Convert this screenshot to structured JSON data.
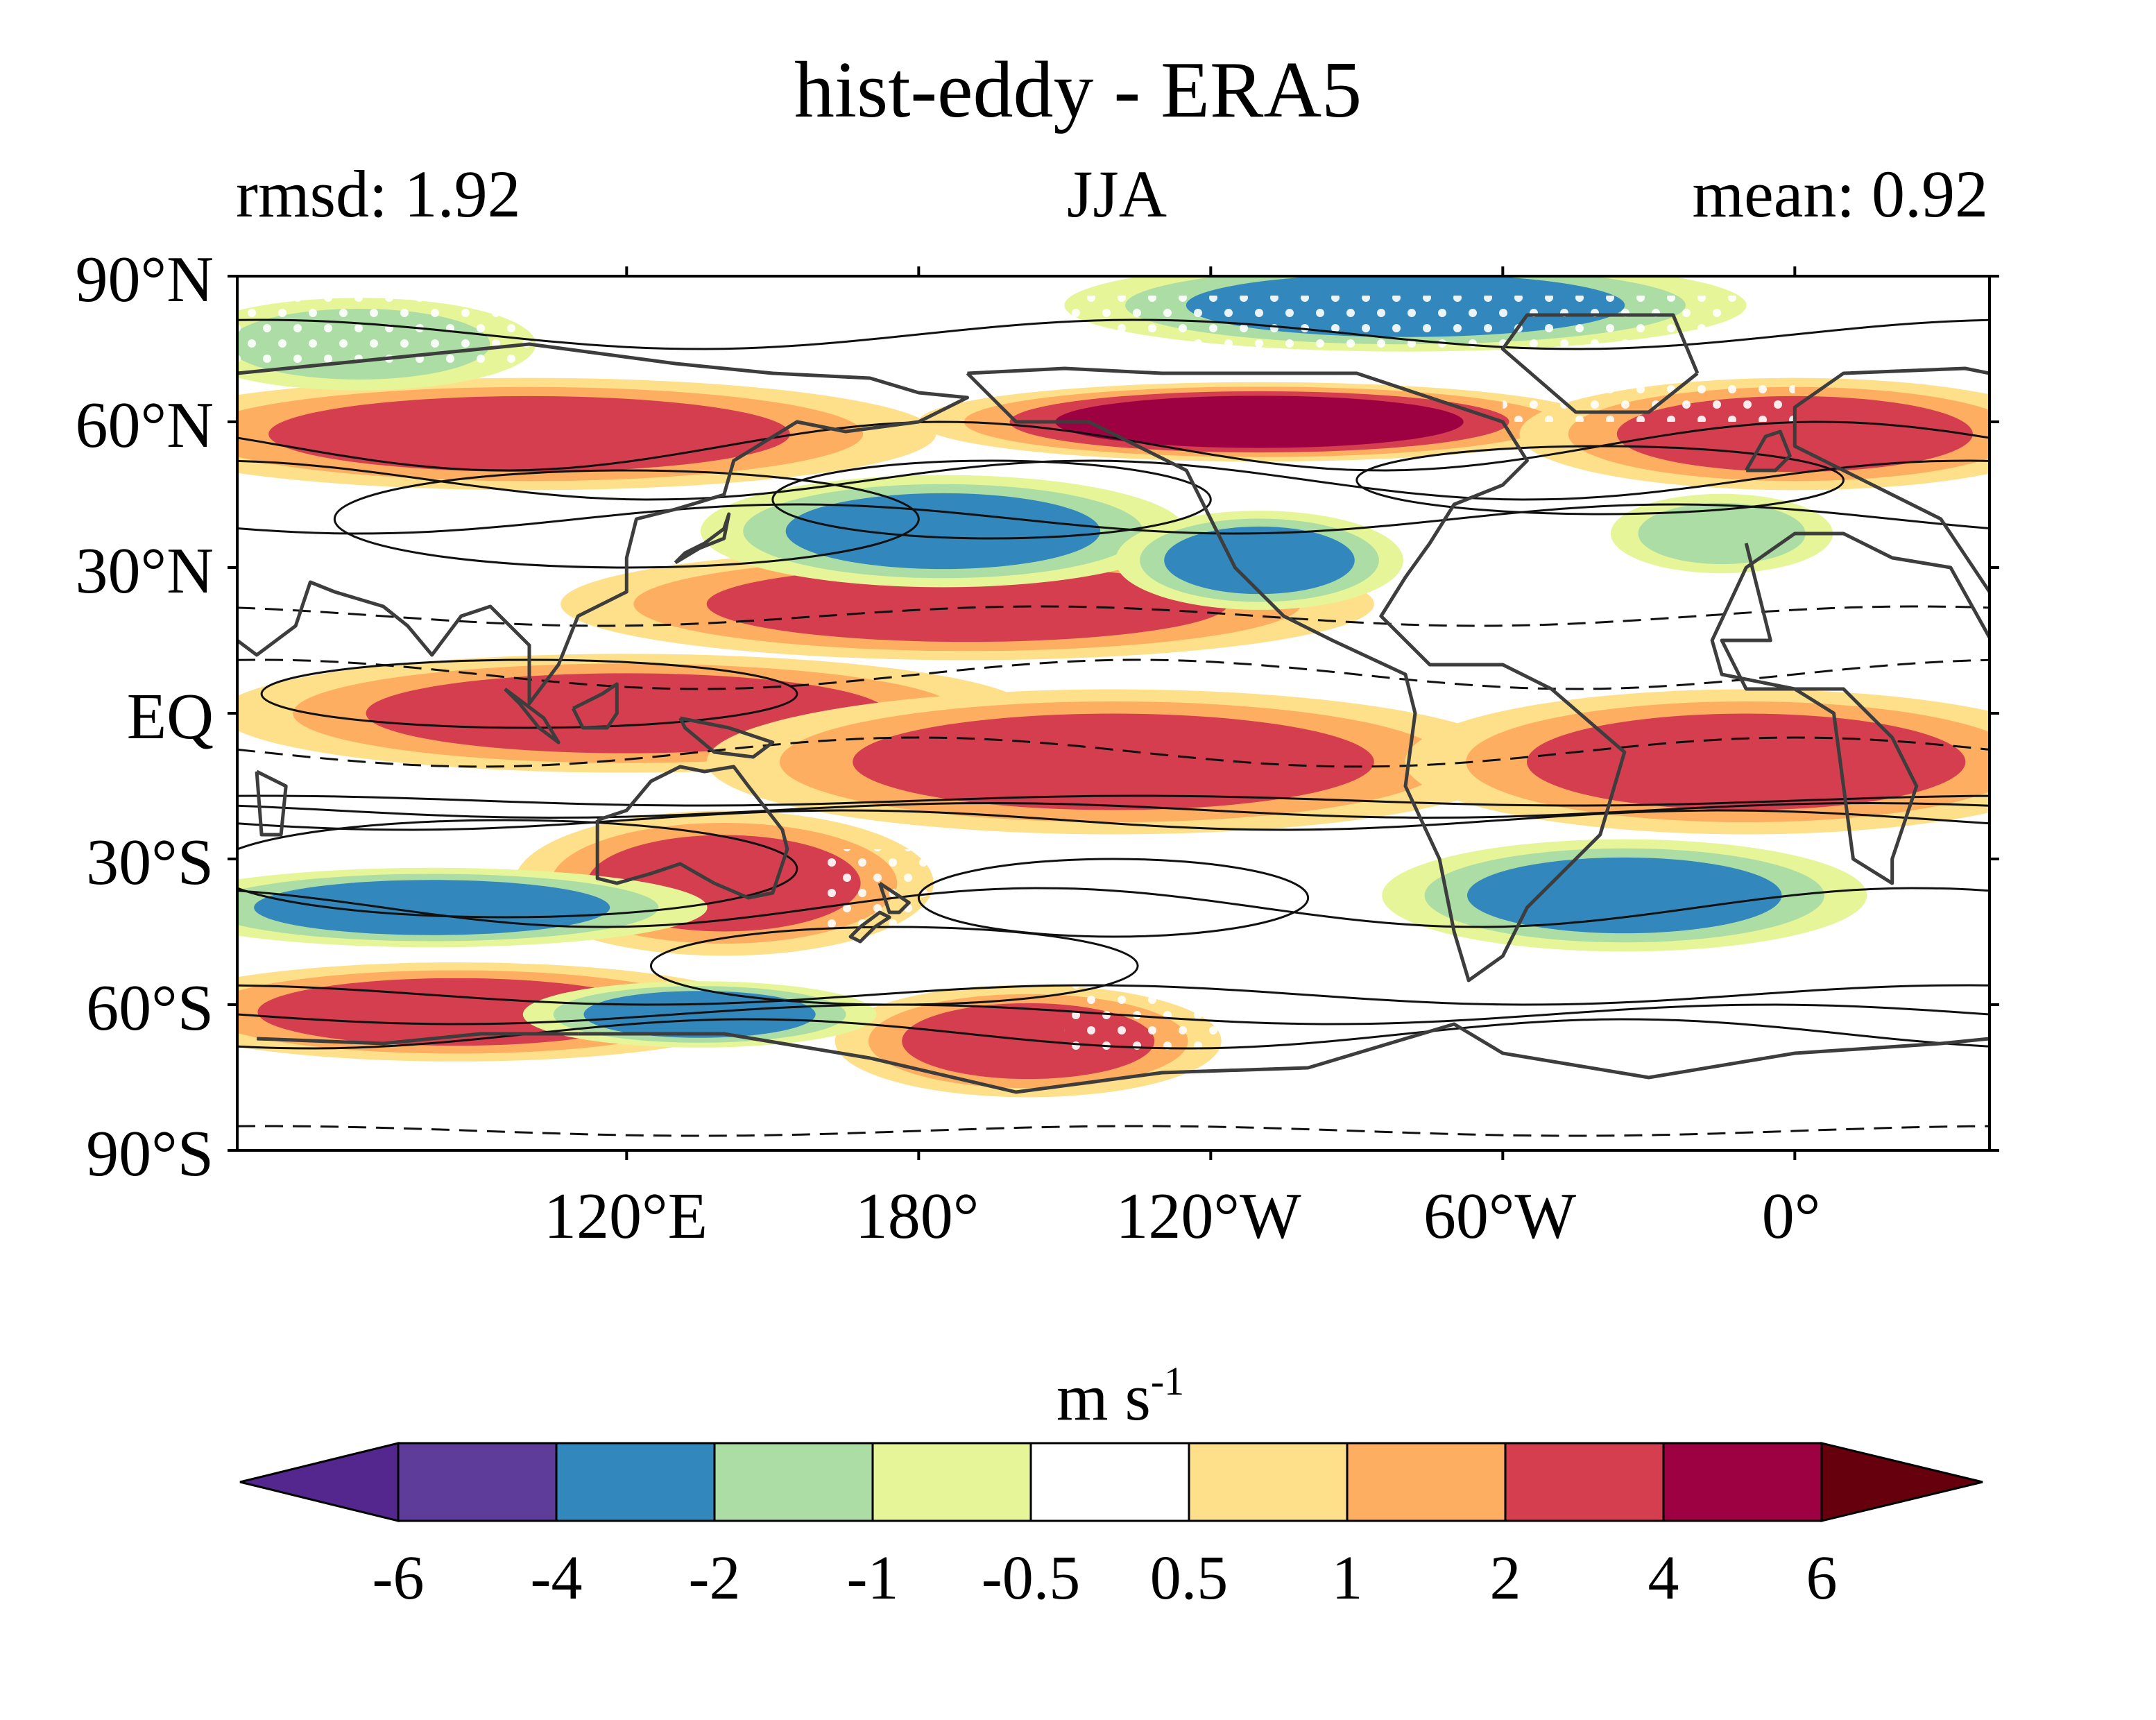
{
  "figure": {
    "title": "hist-eddy - ERA5",
    "subtitle_left": "rmsd: 1.92",
    "subtitle_center": "JJA",
    "subtitle_right": "mean: 0.92"
  },
  "map": {
    "lat_labels": [
      "90°N",
      "60°N",
      "30°N",
      "EQ",
      "30°S",
      "60°S",
      "90°S"
    ],
    "lon_labels": [
      "120°E",
      "180°",
      "120°W",
      "60°W",
      "0°"
    ],
    "lon_range": [
      40,
      400
    ],
    "lat_range": [
      -90,
      90
    ]
  },
  "colorbar": {
    "units_base": "m s",
    "units_exp": "-1",
    "tick_labels": [
      "-6",
      "-4",
      "-2",
      "-1",
      "-0.5",
      "0.5",
      "1",
      "2",
      "4",
      "6"
    ],
    "colors": [
      "#5e3c99",
      "#3288bd",
      "#abdda4",
      "#e6f598",
      "#ffffff",
      "#fee08b",
      "#fdae61",
      "#d53e4f",
      "#9e0142"
    ],
    "under_color": "#54278f",
    "over_color": "#67000d"
  },
  "chart_data": {
    "type": "heatmap",
    "title": "hist-eddy - ERA5",
    "season": "JJA",
    "rmsd": 1.92,
    "mean": 0.92,
    "units": "m s-1",
    "levels": [
      -6,
      -4,
      -2,
      -1,
      -0.5,
      0.5,
      1,
      2,
      4,
      6
    ],
    "features": [
      {
        "lon": [
          60,
          180
        ],
        "lat": [
          -8,
          8
        ],
        "value": 3
      },
      {
        "lon": [
          160,
          280
        ],
        "lat": [
          -20,
          0
        ],
        "value": 3
      },
      {
        "lon": [
          130,
          250
        ],
        "lat": [
          15,
          30
        ],
        "value": 3
      },
      {
        "lon": [
          300,
          400
        ],
        "lat": [
          -20,
          0
        ],
        "value": 3
      },
      {
        "lon": [
          40,
          160
        ],
        "lat": [
          50,
          65
        ],
        "value": 3
      },
      {
        "lon": [
          200,
          300
        ],
        "lat": [
          55,
          65
        ],
        "value": 5
      },
      {
        "lon": [
          320,
          400
        ],
        "lat": [
          50,
          65
        ],
        "value": 4
      },
      {
        "lon": [
          110,
          170
        ],
        "lat": [
          -45,
          -25
        ],
        "value": 3
      },
      {
        "lon": [
          40,
          130
        ],
        "lat": [
          -68,
          -55
        ],
        "value": 3
      },
      {
        "lon": [
          175,
          230
        ],
        "lat": [
          -75,
          -60
        ],
        "value": 3
      },
      {
        "lon": [
          150,
          220
        ],
        "lat": [
          30,
          45
        ],
        "value": -4
      },
      {
        "lon": [
          290,
          360
        ],
        "lat": [
          -45,
          -30
        ],
        "value": -3
      },
      {
        "lon": [
          40,
          120
        ],
        "lat": [
          -45,
          -35
        ],
        "value": -3
      },
      {
        "lon": [
          110,
          160
        ],
        "lat": [
          -66,
          -58
        ],
        "value": -3
      },
      {
        "lon": [
          230,
          270
        ],
        "lat": [
          25,
          38
        ],
        "value": -3
      },
      {
        "lon": [
          330,
          360
        ],
        "lat": [
          32,
          42
        ],
        "value": -2
      },
      {
        "lon": [
          230,
          330
        ],
        "lat": [
          78,
          90
        ],
        "value": -3
      },
      {
        "lon": [
          40,
          90
        ],
        "lat": [
          70,
          82
        ],
        "value": -2
      }
    ],
    "climatology_contours": "solid positive, dashed negative"
  }
}
